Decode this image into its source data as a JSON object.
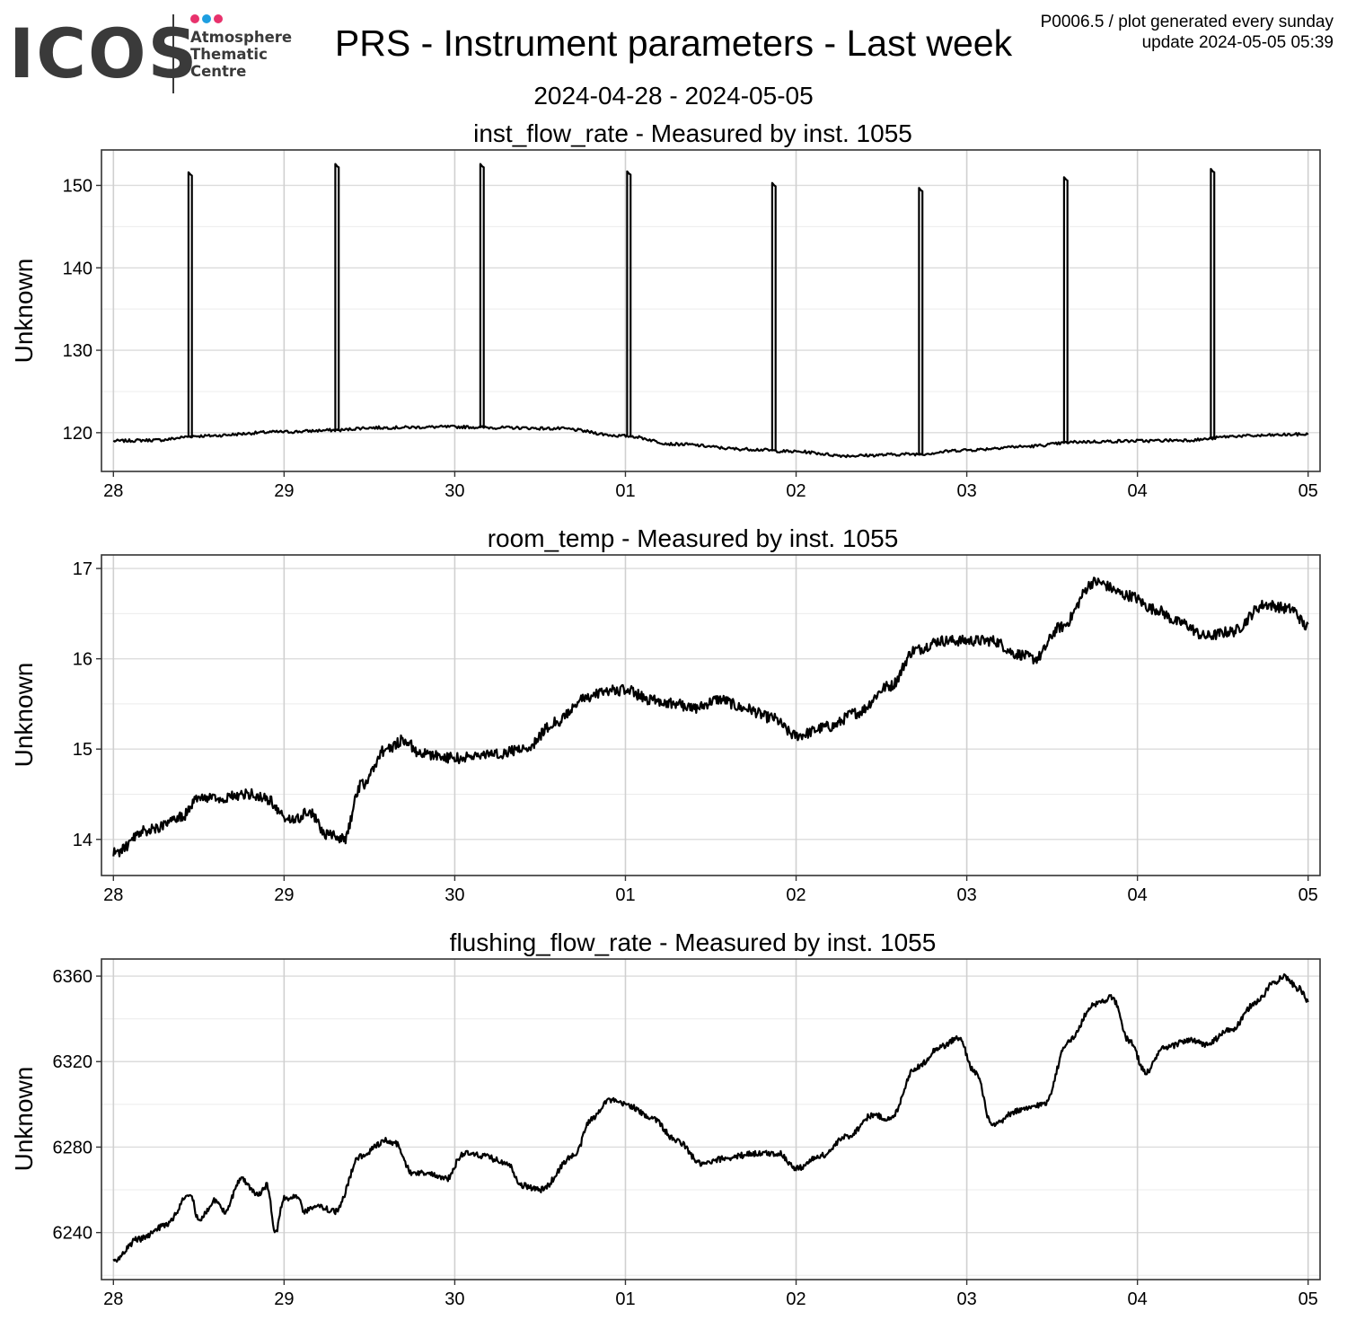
{
  "logo": {
    "text": "ICOS",
    "line1": "Atmosphere",
    "line2": "Thematic",
    "line3": "Centre",
    "dot_colors": [
      "#e8326c",
      "#1e9ee0",
      "#e8326c"
    ]
  },
  "title": "PRS - Instrument parameters - Last week",
  "subtitle": "2024-04-28 - 2024-05-05",
  "meta": {
    "line1": "P0006.5 / plot generated every sunday",
    "line2": "update  2024-05-05 05:39"
  },
  "chart_data": [
    {
      "type": "line",
      "title": "inst_flow_rate - Measured by inst. 1055",
      "ylabel": "Unknown",
      "xlabel": "",
      "x_ticks": [
        "28",
        "29",
        "30",
        "01",
        "02",
        "03",
        "04",
        "05"
      ],
      "xlim": [
        -0.07,
        7.07
      ],
      "ylim": [
        115.3,
        154.3
      ],
      "y_ticks": [
        120,
        130,
        140,
        150
      ],
      "grid": true,
      "line_color": "#000000",
      "baseline": {
        "x": [
          0,
          0.25,
          0.5,
          1.0,
          1.3,
          1.5,
          2.0,
          2.3,
          2.6,
          3.0,
          3.3,
          3.7,
          4.0,
          4.3,
          4.7,
          5.0,
          5.3,
          5.7,
          6.0,
          6.3,
          6.6,
          7.0
        ],
        "y": [
          119.0,
          119.1,
          119.6,
          120.1,
          120.3,
          120.6,
          120.7,
          120.6,
          120.5,
          119.6,
          118.6,
          118.0,
          117.7,
          117.2,
          117.4,
          117.9,
          118.3,
          118.9,
          119.0,
          119.1,
          119.6,
          119.8
        ]
      },
      "spikes": [
        {
          "x": 0.44,
          "peak": 151.6
        },
        {
          "x": 1.3,
          "peak": 152.6
        },
        {
          "x": 2.15,
          "peak": 152.6
        },
        {
          "x": 3.01,
          "peak": 151.7
        },
        {
          "x": 3.86,
          "peak": 150.3
        },
        {
          "x": 4.72,
          "peak": 149.7
        },
        {
          "x": 5.57,
          "peak": 151.0
        },
        {
          "x": 6.43,
          "peak": 152.0
        }
      ]
    },
    {
      "type": "line",
      "title": "room_temp - Measured by inst. 1055",
      "ylabel": "Unknown",
      "xlabel": "",
      "x_ticks": [
        "28",
        "29",
        "30",
        "01",
        "02",
        "03",
        "04",
        "05"
      ],
      "xlim": [
        -0.07,
        7.07
      ],
      "ylim": [
        13.6,
        17.15
      ],
      "y_ticks": [
        14,
        15,
        16,
        17
      ],
      "grid": true,
      "line_color": "#000000",
      "noise": 0.06,
      "x": [
        0,
        0.2,
        0.4,
        0.5,
        0.6,
        0.8,
        0.9,
        1.0,
        1.05,
        1.15,
        1.25,
        1.35,
        1.45,
        1.6,
        1.7,
        1.8,
        2.0,
        2.25,
        2.4,
        2.6,
        2.75,
        2.9,
        3.0,
        3.15,
        3.3,
        3.4,
        3.55,
        3.7,
        3.85,
        4.0,
        4.2,
        4.35,
        4.55,
        4.7,
        4.85,
        5.0,
        5.15,
        5.3,
        5.4,
        5.55,
        5.75,
        5.95,
        6.1,
        6.25,
        6.4,
        6.55,
        6.75,
        6.9,
        7.0
      ],
      "y": [
        13.85,
        14.1,
        14.25,
        14.45,
        14.45,
        14.5,
        14.45,
        14.25,
        14.2,
        14.3,
        14.05,
        14.0,
        14.6,
        15.0,
        15.1,
        14.95,
        14.9,
        14.95,
        15.0,
        15.3,
        15.55,
        15.65,
        15.65,
        15.55,
        15.5,
        15.45,
        15.55,
        15.45,
        15.35,
        15.15,
        15.25,
        15.4,
        15.7,
        16.1,
        16.2,
        16.2,
        16.2,
        16.05,
        16.0,
        16.35,
        16.85,
        16.7,
        16.55,
        16.4,
        16.25,
        16.3,
        16.6,
        16.55,
        16.35
      ]
    },
    {
      "type": "line",
      "title": "flushing_flow_rate - Measured by inst. 1055",
      "ylabel": "Unknown",
      "xlabel": "",
      "x_ticks": [
        "28",
        "29",
        "30",
        "01",
        "02",
        "03",
        "04",
        "05"
      ],
      "xlim": [
        -0.07,
        7.07
      ],
      "ylim": [
        6218,
        6368
      ],
      "y_ticks": [
        6240,
        6280,
        6320,
        6360
      ],
      "grid": true,
      "line_color": "#000000",
      "noise": 1.4,
      "x": [
        0,
        0.15,
        0.3,
        0.45,
        0.5,
        0.6,
        0.65,
        0.75,
        0.85,
        0.9,
        0.95,
        1.0,
        1.08,
        1.12,
        1.2,
        1.3,
        1.45,
        1.6,
        1.65,
        1.75,
        1.85,
        1.95,
        2.05,
        2.15,
        2.3,
        2.4,
        2.5,
        2.7,
        2.8,
        2.9,
        3.0,
        3.15,
        3.3,
        3.45,
        3.6,
        3.75,
        3.9,
        4.0,
        4.15,
        4.3,
        4.45,
        4.55,
        4.7,
        4.85,
        4.95,
        5.05,
        5.15,
        5.3,
        5.45,
        5.6,
        5.75,
        5.85,
        5.95,
        6.05,
        6.15,
        6.3,
        6.4,
        6.55,
        6.7,
        6.8,
        6.85,
        6.95,
        7.0
      ],
      "y": [
        6227,
        6237,
        6243,
        6258,
        6246,
        6255,
        6250,
        6265,
        6258,
        6262,
        6240,
        6256,
        6257,
        6250,
        6252,
        6250,
        6276,
        6283,
        6282,
        6268,
        6268,
        6265,
        6277,
        6276,
        6273,
        6262,
        6260,
        6276,
        6293,
        6302,
        6300,
        6294,
        6283,
        6272,
        6275,
        6277,
        6277,
        6270,
        6276,
        6285,
        6295,
        6293,
        6317,
        6327,
        6331,
        6315,
        6290,
        6297,
        6300,
        6330,
        6347,
        6350,
        6330,
        6315,
        6326,
        6330,
        6328,
        6335,
        6348,
        6357,
        6360,
        6354,
        6348
      ]
    }
  ]
}
